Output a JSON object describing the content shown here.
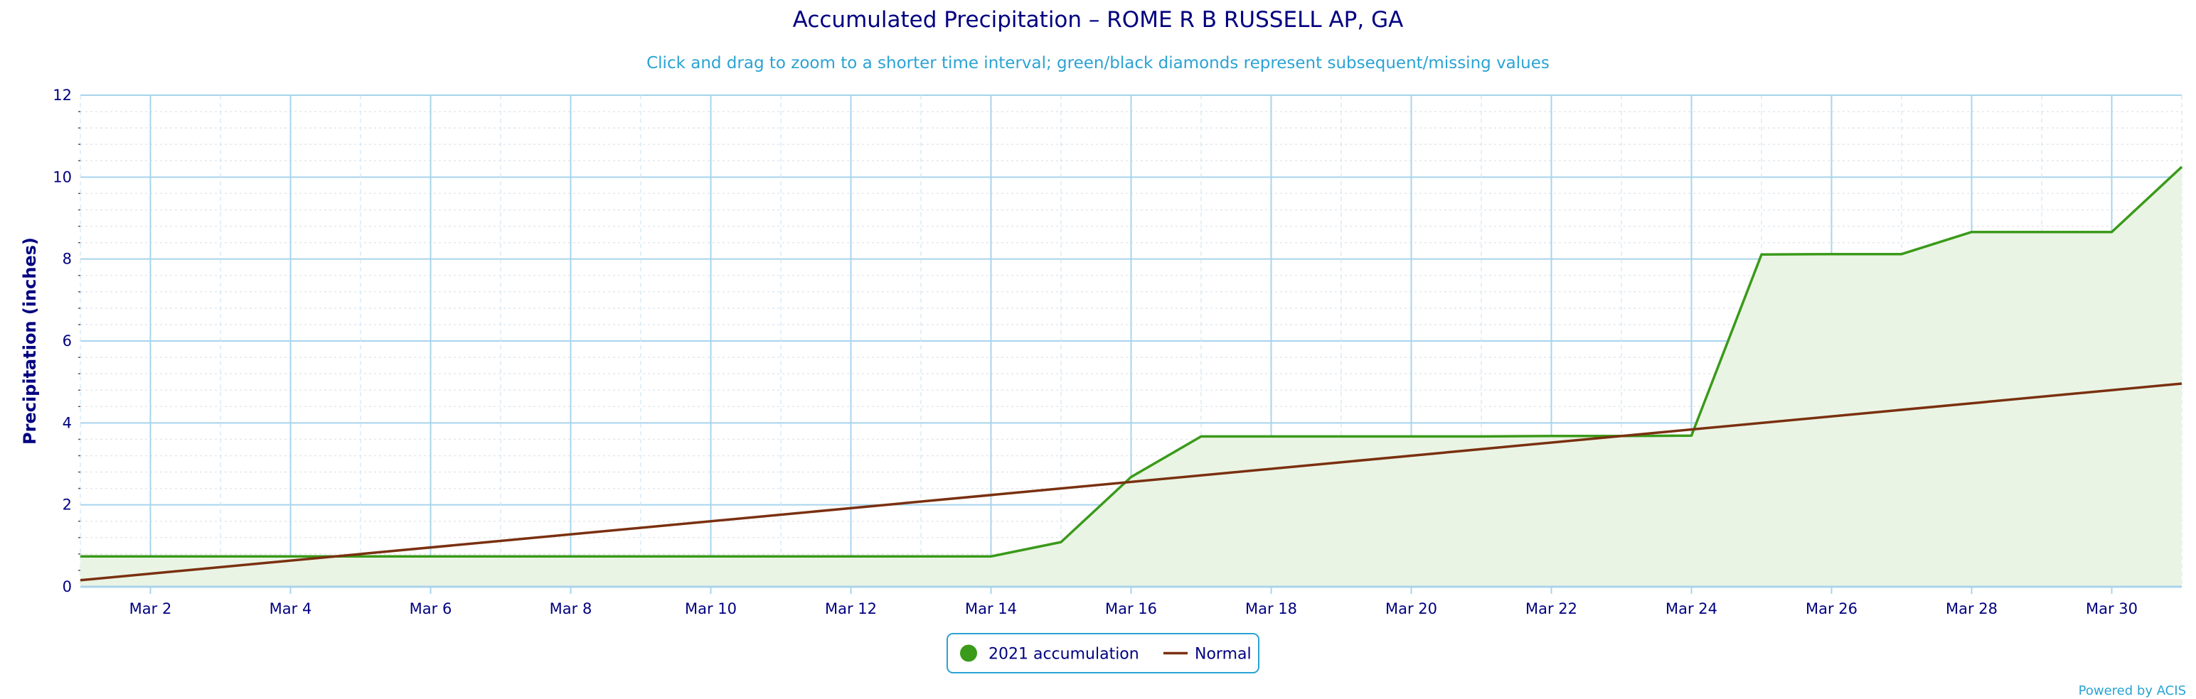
{
  "chart_data": {
    "type": "line",
    "title": "Accumulated Precipitation – ROME R B RUSSELL AP, GA",
    "subtitle": "Click and drag to zoom to a shorter time interval; green/black diamonds represent subsequent/missing values",
    "ylabel": "Precipitation (inches)",
    "ylim": [
      0,
      12
    ],
    "yticks": [
      "0",
      "2",
      "4",
      "6",
      "8",
      "10",
      "12"
    ],
    "xlim": [
      1,
      31
    ],
    "xticks": [
      {
        "x": 2,
        "label": "Mar 2"
      },
      {
        "x": 4,
        "label": "Mar 4"
      },
      {
        "x": 6,
        "label": "Mar 6"
      },
      {
        "x": 8,
        "label": "Mar 8"
      },
      {
        "x": 10,
        "label": "Mar 10"
      },
      {
        "x": 12,
        "label": "Mar 12"
      },
      {
        "x": 14,
        "label": "Mar 14"
      },
      {
        "x": 16,
        "label": "Mar 16"
      },
      {
        "x": 18,
        "label": "Mar 18"
      },
      {
        "x": 20,
        "label": "Mar 20"
      },
      {
        "x": 22,
        "label": "Mar 22"
      },
      {
        "x": 24,
        "label": "Mar 24"
      },
      {
        "x": 26,
        "label": "Mar 26"
      },
      {
        "x": 28,
        "label": "Mar 28"
      },
      {
        "x": 30,
        "label": "Mar 30"
      }
    ],
    "grid": true,
    "legend_position": "bottom-center",
    "series": [
      {
        "name": "2021 accumulation",
        "color": "#3a9a1a",
        "fill": "#eaf4e4",
        "marker": "circle",
        "x": [
          1,
          2,
          3,
          4,
          5,
          6,
          7,
          8,
          9,
          10,
          11,
          12,
          13,
          14,
          15,
          16,
          17,
          18,
          19,
          20,
          21,
          22,
          23,
          24,
          25,
          26,
          27,
          28,
          29,
          30,
          31
        ],
        "y": [
          0.74,
          0.74,
          0.74,
          0.74,
          0.74,
          0.74,
          0.74,
          0.74,
          0.74,
          0.74,
          0.74,
          0.74,
          0.74,
          0.74,
          1.09,
          2.68,
          3.67,
          3.67,
          3.67,
          3.67,
          3.67,
          3.68,
          3.68,
          3.69,
          8.11,
          8.12,
          8.12,
          8.66,
          8.66,
          8.66,
          10.25
        ]
      },
      {
        "name": "Normal",
        "color": "#7a3010",
        "marker": "line",
        "x": [
          1,
          31
        ],
        "y": [
          0.16,
          4.96
        ]
      }
    ]
  },
  "footer": {
    "powered": "Powered by ACIS"
  }
}
